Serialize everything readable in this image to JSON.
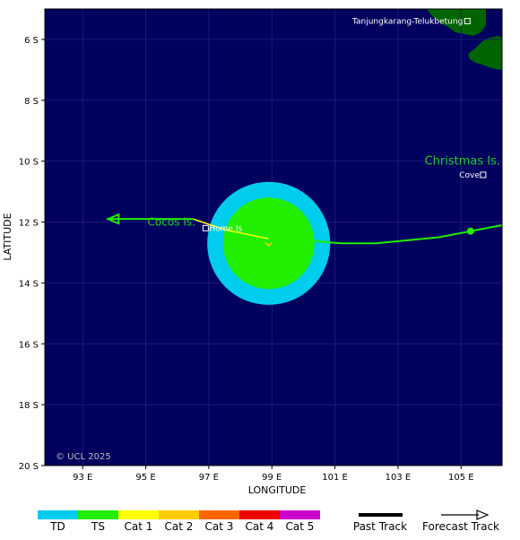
{
  "map": {
    "x_axis_label": "LONGITUDE",
    "y_axis_label": "LATITUDE",
    "lon_ticks": [
      "93 E",
      "95 E",
      "97 E",
      "99 E",
      "101 E",
      "103 E",
      "105 E"
    ],
    "lat_ticks": [
      "6 S",
      "8 S",
      "10 S",
      "12 S",
      "14 S",
      "16 S",
      "18 S",
      "20 S"
    ],
    "lon_range": [
      91.8,
      106.3
    ],
    "lat_range": [
      -20.0,
      -5.0
    ],
    "ocean_color": "#00005e",
    "land_color": "#006400",
    "credit": "© UCL 2025"
  },
  "places": [
    {
      "name": "Tanjungkarang-Telukbetung",
      "lon": 105.2,
      "lat": -5.4
    },
    {
      "name": "Christmas Is.",
      "lon": 105.6,
      "lat": -10.0
    },
    {
      "name": "Cove",
      "lon": 105.7,
      "lat": -10.45
    },
    {
      "name": "Cocos Is.",
      "lon": 96.8,
      "lat": -12.0
    },
    {
      "name": "Home Is",
      "lon": 96.9,
      "lat": -12.2
    }
  ],
  "storm": {
    "current_position": {
      "lon": 98.9,
      "lat": -12.7
    },
    "inner_wind_radius_deg": 1.45,
    "outer_wind_radius_deg": 1.95,
    "inner_color": "#22ee00",
    "outer_color": "#00ccee",
    "past_track": [
      {
        "lon": 106.3,
        "lat": -12.1
      },
      {
        "lon": 105.3,
        "lat": -12.3
      },
      {
        "lon": 104.3,
        "lat": -12.5
      },
      {
        "lon": 102.3,
        "lat": -12.7
      },
      {
        "lon": 101.2,
        "lat": -12.7
      },
      {
        "lon": 100.0,
        "lat": -12.6
      },
      {
        "lon": 99.2,
        "lat": -12.6
      },
      {
        "lon": 98.9,
        "lat": -12.55
      }
    ],
    "forecast_track": [
      {
        "lon": 98.9,
        "lat": -12.55
      },
      {
        "lon": 97.5,
        "lat": -12.25
      },
      {
        "lon": 96.5,
        "lat": -11.9
      },
      {
        "lon": 93.8,
        "lat": -11.9
      }
    ],
    "past_track_color": "#22ee00",
    "forecast_track_color": "#ffff00"
  },
  "legend": {
    "categories": [
      {
        "label": "TD",
        "color": "#00ccee"
      },
      {
        "label": "TS",
        "color": "#22ee00"
      },
      {
        "label": "Cat 1",
        "color": "#ffff00"
      },
      {
        "label": "Cat 2",
        "color": "#ffcc00"
      },
      {
        "label": "Cat 3",
        "color": "#ff6600"
      },
      {
        "label": "Cat 4",
        "color": "#ee0000"
      },
      {
        "label": "Cat 5",
        "color": "#cc00cc"
      }
    ],
    "past_track_label": "Past Track",
    "forecast_track_label": "Forecast Track"
  }
}
